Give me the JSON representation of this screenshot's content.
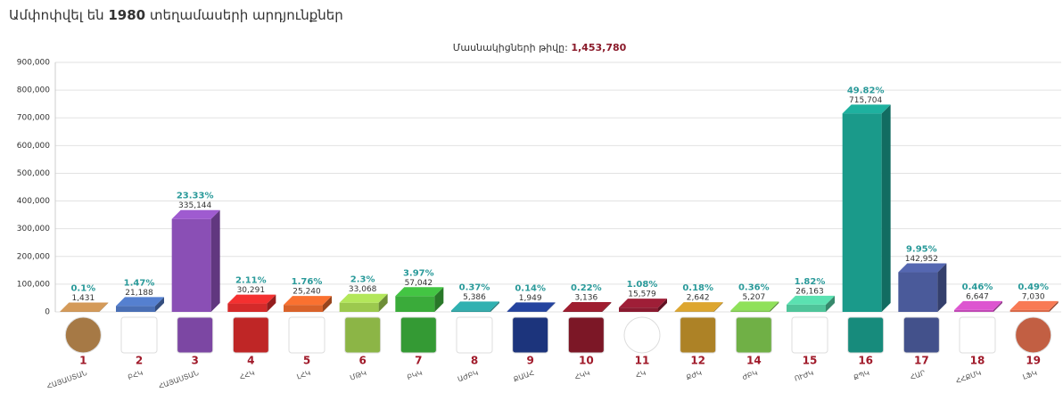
{
  "chart_data": {
    "type": "bar3d",
    "title_parts": [
      "Ամփոփվել են",
      "1980",
      "տեղամասերի արդյունքներ"
    ],
    "subtitle": "Մասնակիցների թիվը:",
    "participants": "1,453,780",
    "categories": [
      "1",
      "2",
      "3",
      "4",
      "5",
      "6",
      "7",
      "8",
      "9",
      "10",
      "11",
      "12",
      "14",
      "15",
      "16",
      "17",
      "18",
      "19"
    ],
    "party_names": [
      "ՀԱՅԱՍՏԱՆ",
      "ԲՀԿ",
      "ՀԱՅԱՍՏԱՆ",
      "ՀՀԿ",
      "ԼՀԿ",
      "ՄԹԿ",
      "ԲԿԿ",
      "ԱԺԲԿ",
      "ՔԱԱՀ",
      "ՀԿԿ",
      "ՀԿ",
      "ՔԺԿ",
      "ԺԲԿ",
      "ՈՒԺԿ",
      "ՔՊԿ",
      "ՀԱՐ",
      "ՀՀՔՄԿ",
      "ԼՖԿ"
    ],
    "values": [
      1431,
      21188,
      335144,
      30291,
      25240,
      33068,
      57042,
      5386,
      1949,
      3136,
      15579,
      2642,
      5207,
      26163,
      715704,
      142952,
      6647,
      7030
    ],
    "value_labels": [
      "1,431",
      "21,188",
      "335,144",
      "30,291",
      "25,240",
      "33,068",
      "57,042",
      "5,386",
      "1,949",
      "3,136",
      "15,579",
      "2,642",
      "5,207",
      "26,163",
      "715,704",
      "142,952",
      "6,647",
      "7,030"
    ],
    "percentage_labels": [
      "0.1%",
      "1.47%",
      "23.33%",
      "2.11%",
      "1.76%",
      "2.3%",
      "3.97%",
      "0.37%",
      "0.14%",
      "0.22%",
      "1.08%",
      "0.18%",
      "0.36%",
      "1.82%",
      "49.82%",
      "9.95%",
      "0.46%",
      "0.49%"
    ],
    "colors": [
      "#b8864d",
      "#4a6fb5",
      "#8a4fb5",
      "#d42a2a",
      "#d9622a",
      "#9cc94e",
      "#3aab3a",
      "#2a9a9a",
      "#1f3a8a",
      "#8a1a2a",
      "#8a1a30",
      "#c0902a",
      "#7cc44e",
      "#4fc49a",
      "#1a9a8a",
      "#4a5a9a",
      "#c04ab5",
      "#d86a4a"
    ],
    "ylim": [
      0,
      900000
    ],
    "yticks": [
      0,
      {
        "value": 100000,
        "label": "100,000"
      },
      {
        "value": 200000,
        "label": "200,000"
      },
      {
        "value": 300000,
        "label": "300,000"
      },
      {
        "value": 400000,
        "label": "400,000"
      },
      {
        "value": 500000,
        "label": "500,000"
      },
      {
        "value": 600000,
        "label": "600,000"
      },
      {
        "value": 700000,
        "label": "700,000"
      },
      {
        "value": 800000,
        "label": "800,000"
      },
      {
        "value": 900000,
        "label": "900,000"
      }
    ],
    "grid": true
  }
}
